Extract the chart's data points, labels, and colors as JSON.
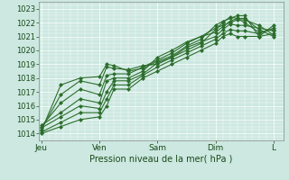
{
  "bg_color": "#cce8e0",
  "plot_bg_color": "#cce8e0",
  "grid_color": "#ffffff",
  "line_color": "#2d6e2d",
  "marker_color": "#2d6e2d",
  "xlabel": "Pression niveau de la mer( hPa )",
  "ylim": [
    1013.5,
    1023.5
  ],
  "yticks": [
    1014,
    1015,
    1016,
    1017,
    1018,
    1019,
    1020,
    1021,
    1022,
    1023
  ],
  "xtick_labels": [
    "Jeu",
    "Ven",
    "Sam",
    "Dim",
    "L"
  ],
  "xtick_positions": [
    0,
    24,
    48,
    72,
    96
  ],
  "xlim": [
    -1,
    100
  ],
  "lines": [
    {
      "x": [
        0,
        8,
        16,
        24,
        27,
        30,
        36,
        42,
        48,
        54,
        60,
        66,
        72,
        75,
        78,
        81,
        84,
        90,
        96
      ],
      "y": [
        1014.2,
        1017.5,
        1018.0,
        1018.1,
        1019.0,
        1018.9,
        1018.5,
        1018.7,
        1019.2,
        1019.6,
        1020.3,
        1020.8,
        1021.8,
        1022.1,
        1022.3,
        1022.5,
        1022.5,
        1021.0,
        1021.2
      ]
    },
    {
      "x": [
        0,
        8,
        16,
        24,
        27,
        30,
        36,
        42,
        48,
        54,
        60,
        66,
        72,
        75,
        78,
        81,
        84,
        90,
        96
      ],
      "y": [
        1014.3,
        1016.8,
        1017.8,
        1017.5,
        1018.8,
        1018.7,
        1018.6,
        1018.9,
        1019.0,
        1019.5,
        1020.0,
        1020.5,
        1021.5,
        1022.0,
        1022.4,
        1022.3,
        1022.0,
        1021.3,
        1021.5
      ]
    },
    {
      "x": [
        0,
        8,
        16,
        24,
        27,
        30,
        36,
        42,
        48,
        54,
        60,
        66,
        72,
        75,
        78,
        81,
        84,
        90,
        96
      ],
      "y": [
        1014.5,
        1016.2,
        1017.2,
        1016.8,
        1018.2,
        1018.3,
        1018.3,
        1018.8,
        1019.3,
        1019.8,
        1020.5,
        1021.0,
        1021.6,
        1021.8,
        1022.0,
        1022.2,
        1022.2,
        1021.8,
        1021.1
      ]
    },
    {
      "x": [
        0,
        8,
        16,
        24,
        27,
        30,
        36,
        42,
        48,
        54,
        60,
        66,
        72,
        75,
        78,
        81,
        84,
        90,
        96
      ],
      "y": [
        1014.6,
        1015.5,
        1016.5,
        1016.2,
        1017.8,
        1018.0,
        1018.0,
        1018.5,
        1019.5,
        1020.0,
        1020.6,
        1021.0,
        1021.3,
        1021.7,
        1022.1,
        1022.3,
        1022.3,
        1021.5,
        1021.0
      ]
    },
    {
      "x": [
        0,
        8,
        16,
        24,
        27,
        30,
        36,
        42,
        48,
        54,
        60,
        66,
        72,
        75,
        78,
        81,
        84,
        90,
        96
      ],
      "y": [
        1014.4,
        1015.2,
        1016.0,
        1015.8,
        1017.0,
        1017.8,
        1017.8,
        1018.3,
        1019.1,
        1019.5,
        1020.2,
        1020.6,
        1021.0,
        1021.5,
        1021.9,
        1021.8,
        1021.8,
        1021.6,
        1021.4
      ]
    },
    {
      "x": [
        0,
        8,
        16,
        24,
        27,
        30,
        36,
        42,
        48,
        54,
        60,
        66,
        72,
        75,
        78,
        81,
        84,
        90,
        96
      ],
      "y": [
        1014.1,
        1014.8,
        1015.5,
        1015.5,
        1016.5,
        1017.5,
        1017.5,
        1018.2,
        1018.8,
        1019.3,
        1019.8,
        1020.3,
        1020.8,
        1021.2,
        1021.5,
        1021.4,
        1021.4,
        1021.2,
        1021.6
      ]
    },
    {
      "x": [
        0,
        8,
        16,
        24,
        27,
        30,
        36,
        42,
        48,
        54,
        60,
        66,
        72,
        75,
        78,
        81,
        84,
        90,
        96
      ],
      "y": [
        1014.0,
        1014.5,
        1015.0,
        1015.2,
        1016.0,
        1017.2,
        1017.2,
        1018.0,
        1018.5,
        1019.0,
        1019.5,
        1020.0,
        1020.5,
        1021.0,
        1021.2,
        1021.0,
        1021.0,
        1021.0,
        1021.8
      ]
    }
  ]
}
